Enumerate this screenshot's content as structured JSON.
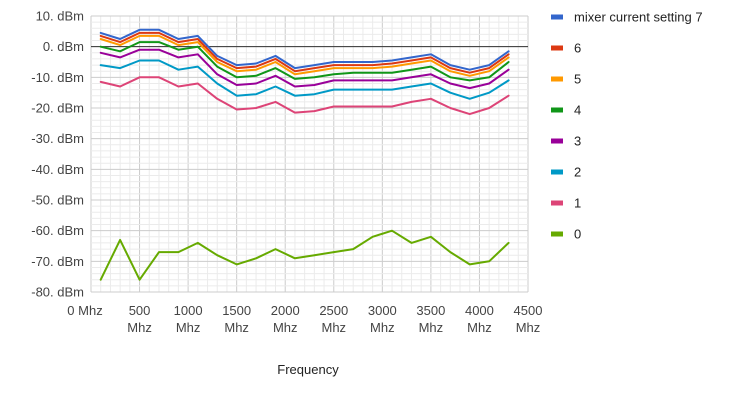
{
  "chart_data": {
    "type": "line",
    "title": "",
    "xlabel": "Frequency",
    "ylabel": "",
    "x_unit": "Mhz",
    "y_unit": "dBm",
    "xlim": [
      0,
      4500
    ],
    "ylim": [
      -80,
      10
    ],
    "x_ticks": [
      0,
      500,
      1000,
      1500,
      2000,
      2500,
      3000,
      3500,
      4000,
      4500
    ],
    "y_ticks": [
      10,
      0,
      -10,
      -20,
      -30,
      -40,
      -50,
      -60,
      -70,
      -80
    ],
    "x_tick_labels": [
      {
        "top": "0 Mhz",
        "bottom": ""
      },
      {
        "top": "500",
        "bottom": "Mhz"
      },
      {
        "top": "1000",
        "bottom": "Mhz"
      },
      {
        "top": "1500",
        "bottom": "Mhz"
      },
      {
        "top": "2000",
        "bottom": "Mhz"
      },
      {
        "top": "2500",
        "bottom": "Mhz"
      },
      {
        "top": "3000",
        "bottom": "Mhz"
      },
      {
        "top": "3500",
        "bottom": "Mhz"
      },
      {
        "top": "4000",
        "bottom": "Mhz"
      },
      {
        "top": "4500",
        "bottom": "Mhz"
      }
    ],
    "y_tick_labels": [
      "10. dBm",
      "0. dBm",
      "-10. dBm",
      "-20. dBm",
      "-30. dBm",
      "-40. dBm",
      "-50. dBm",
      "-60. dBm",
      "-70. dBm",
      "-80. dBm"
    ],
    "grid": true,
    "minor_grid": true,
    "legend_position": "right",
    "x": [
      100,
      300,
      500,
      700,
      900,
      1100,
      1300,
      1500,
      1700,
      1900,
      2100,
      2300,
      2500,
      2700,
      2900,
      3100,
      3300,
      3500,
      3700,
      3900,
      4100,
      4300
    ],
    "series": [
      {
        "name": "mixer current setting 7",
        "color": "#3366cc",
        "values": [
          4.5,
          2.5,
          5.5,
          5.5,
          2.5,
          3.5,
          -3,
          -6,
          -5.5,
          -3,
          -7,
          -6,
          -5,
          -5,
          -5,
          -4.5,
          -3.5,
          -2.5,
          -6,
          -7.5,
          -6,
          -1.5
        ]
      },
      {
        "name": "6",
        "color": "#dc3912",
        "values": [
          3.5,
          1.5,
          4.5,
          4.5,
          1.5,
          2.5,
          -4,
          -7,
          -6.5,
          -4,
          -8,
          -7,
          -6,
          -6,
          -6,
          -5.5,
          -4.5,
          -3.5,
          -7,
          -8.5,
          -7,
          -2.5
        ]
      },
      {
        "name": "5",
        "color": "#ff9900",
        "values": [
          2.5,
          0.5,
          3.5,
          3.5,
          0.5,
          1.5,
          -5,
          -8,
          -7.5,
          -5,
          -9,
          -8,
          -7,
          -7,
          -7,
          -6.5,
          -5.5,
          -4.5,
          -8,
          -9.5,
          -8,
          -3.5
        ]
      },
      {
        "name": "4",
        "color": "#109618",
        "values": [
          0,
          -1.5,
          1.5,
          1.5,
          -1,
          0,
          -6.5,
          -10,
          -9.5,
          -7,
          -10.5,
          -10,
          -9,
          -8.5,
          -8.5,
          -8.5,
          -7.5,
          -6.5,
          -10,
          -11,
          -10,
          -5
        ]
      },
      {
        "name": "3",
        "color": "#990099",
        "values": [
          -2,
          -3.5,
          -1,
          -1,
          -3.5,
          -2.5,
          -9,
          -12.5,
          -12,
          -9.5,
          -13,
          -12.5,
          -11,
          -11,
          -11,
          -11,
          -10,
          -9,
          -12,
          -13.5,
          -12,
          -7.5
        ]
      },
      {
        "name": "2",
        "color": "#0099c6",
        "values": [
          -6,
          -7,
          -4.5,
          -4.5,
          -7.5,
          -6.5,
          -12,
          -16,
          -15.5,
          -13,
          -16,
          -15.5,
          -14,
          -14,
          -14,
          -14,
          -13,
          -12,
          -15,
          -17,
          -15,
          -11
        ]
      },
      {
        "name": "1",
        "color": "#dd4477",
        "values": [
          -11.5,
          -13,
          -10,
          -10,
          -13,
          -12,
          -17,
          -20.5,
          -20,
          -18,
          -21.5,
          -21,
          -19.5,
          -19.5,
          -19.5,
          -19.5,
          -18,
          -17,
          -20,
          -22,
          -20,
          -16
        ]
      },
      {
        "name": "0",
        "color": "#66aa00",
        "values": [
          -76,
          -63,
          -76,
          -67,
          -67,
          -64,
          -68,
          -71,
          -69,
          -66,
          -69,
          -68,
          -67,
          -66,
          -62,
          -60,
          -64,
          -62,
          -67,
          -71,
          -70,
          -64
        ]
      }
    ]
  }
}
